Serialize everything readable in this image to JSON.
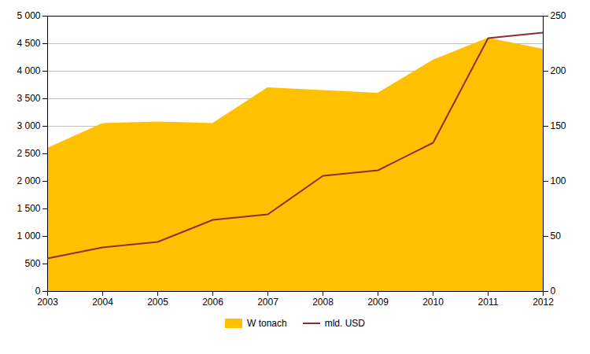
{
  "chart_data": {
    "type": "area",
    "x": [
      2003,
      2004,
      2005,
      2006,
      2007,
      2008,
      2009,
      2010,
      2011,
      2012
    ],
    "xlim": [
      2003,
      2012
    ],
    "xticks": [
      2003,
      2004,
      2005,
      2006,
      2007,
      2008,
      2009,
      2010,
      2011,
      2012
    ],
    "series": [
      {
        "name": "W tonach",
        "type": "area",
        "color": "#FFC000",
        "values": [
          2600,
          3050,
          3080,
          3050,
          3700,
          3650,
          3600,
          4200,
          4600,
          4400
        ]
      },
      {
        "name": "mld. USD",
        "type": "line",
        "color": "#8B3030",
        "axis": "y2",
        "values": [
          30,
          40,
          45,
          65,
          70,
          105,
          110,
          135,
          230,
          235
        ]
      }
    ],
    "ylim": [
      0,
      5000
    ],
    "yticks": [
      0,
      500,
      {
        "value": 1000,
        "label": "1 000"
      },
      {
        "value": 1500,
        "label": "1 500"
      },
      {
        "value": 2000,
        "label": "2 000"
      },
      {
        "value": 2500,
        "label": "2 500"
      },
      {
        "value": 3000,
        "label": "3 000"
      },
      {
        "value": 3500,
        "label": "3 500"
      },
      {
        "value": 4000,
        "label": "4 000"
      },
      {
        "value": 4500,
        "label": "4 500"
      },
      {
        "value": 5000,
        "label": "5 000"
      }
    ],
    "y2lim": [
      0,
      250
    ],
    "y2ticks": [
      0,
      50,
      100,
      150,
      200,
      250
    ],
    "grid": true,
    "legend": "bottom"
  }
}
